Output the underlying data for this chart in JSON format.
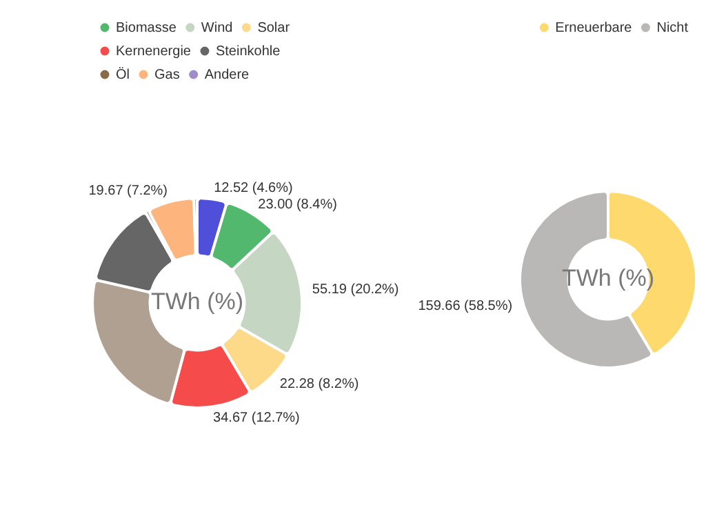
{
  "chart_data": [
    {
      "type": "donut",
      "categories": [
        null,
        "Biomasse",
        "Wind",
        "Solar",
        "Kernenergie",
        null,
        "Steinkohle",
        "Öl",
        "Gas",
        "Andere"
      ],
      "values": [
        12.52,
        23.0,
        55.19,
        22.28,
        34.67,
        66.5,
        36.0,
        1.4,
        19.67,
        1.4
      ],
      "colors": [
        "#4f4fd9",
        "#52b86e",
        "#c5d6c2",
        "#fdd98a",
        "#f54b4b",
        "#b0a092",
        "#666666",
        "#8b6a4a",
        "#fdb47d",
        "#a08cc8"
      ],
      "value_labels": [
        "12.52 (4.6%)",
        "23.00 (8.4%)",
        "55.19 (20.2%)",
        "22.28 (8.2%)",
        "34.67 (12.7%)",
        null,
        null,
        null,
        "19.67 (7.2%)",
        null
      ],
      "annotations": [
        "TWh (%)"
      ],
      "legend": "top left"
    },
    {
      "type": "donut",
      "categories": [
        "Erneuerbare",
        "Nicht"
      ],
      "values": [
        112.99,
        159.66
      ],
      "colors": [
        "#fdd96e",
        "#bab8b6"
      ],
      "value_labels": [
        null,
        "159.66 (58.5%)"
      ],
      "annotations": [
        "TWh (%)"
      ],
      "legend": "top right"
    }
  ]
}
